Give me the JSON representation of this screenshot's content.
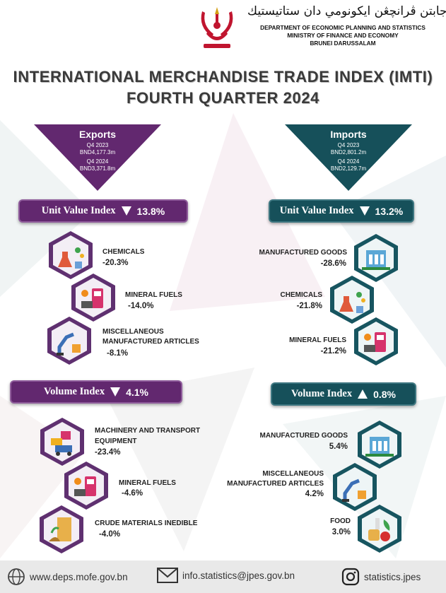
{
  "header": {
    "jawi": "جابتن ڤرانچڠن ايكونومي دان ستاتيستيك",
    "department": "DEPARTMENT OF ECONOMIC PLANNING AND STATISTICS",
    "ministry": "MINISTRY OF FINANCE AND ECONOMY",
    "country": "BRUNEI DARUSSALAM",
    "crest_icon": "brunei-crest-icon"
  },
  "title": {
    "line1": "INTERNATIONAL MERCHANDISE TRADE INDEX (IMTI)",
    "line2": "FOURTH QUARTER 2024"
  },
  "colors": {
    "purple": "#62286f",
    "teal": "#16505a",
    "hex_purple": "#5f3070",
    "hex_teal": "#175560"
  },
  "exports": {
    "heading": "Exports",
    "q_prev_label": "Q4 2023",
    "q_prev_value": "BND4,177.3m",
    "q_curr_label": "Q4 2024",
    "q_curr_value": "BND3,371.8m",
    "unit_value_index": {
      "label": "Unit Value Index",
      "direction": "down",
      "value": "13.8%"
    },
    "unit_value_items": [
      {
        "name": "CHEMICALS",
        "value": "-20.3%",
        "icon": "chemicals-icon"
      },
      {
        "name": "MINERAL FUELS",
        "value": "-14.0%",
        "icon": "fuel-pump-icon"
      },
      {
        "name_line1": "MISCELLANEOUS",
        "name_line2": "MANUFACTURED ARTICLES",
        "value": "-8.1%",
        "icon": "robot-arm-icon"
      }
    ],
    "volume_index": {
      "label": "Volume Index",
      "direction": "down",
      "value": "4.1%"
    },
    "volume_items": [
      {
        "name_line1": "MACHINERY AND TRANSPORT",
        "name_line2": "EQUIPMENT",
        "value": "-23.4%",
        "icon": "machinery-icon"
      },
      {
        "name": "MINERAL FUELS",
        "value": "-4.6%",
        "icon": "fuel-pump-icon"
      },
      {
        "name": "CRUDE MATERIALS INEDIBLE",
        "value": "-4.0%",
        "icon": "crude-materials-icon"
      }
    ]
  },
  "imports": {
    "heading": "Imports",
    "q_prev_label": "Q4 2023",
    "q_prev_value": "BND2,801.2m",
    "q_curr_label": "Q4 2024",
    "q_curr_value": "BND2,129.7m",
    "unit_value_index": {
      "label": "Unit Value Index",
      "direction": "down",
      "value": "13.2%"
    },
    "unit_value_items": [
      {
        "name": "MANUFACTURED GOODS",
        "value": "-28.6%",
        "icon": "factory-icon"
      },
      {
        "name": "CHEMICALS",
        "value": "-21.8%",
        "icon": "chemicals-icon"
      },
      {
        "name": "MINERAL FUELS",
        "value": "-21.2%",
        "icon": "fuel-pump-icon"
      }
    ],
    "volume_index": {
      "label": "Volume Index",
      "direction": "up",
      "value": "0.8%"
    },
    "volume_items": [
      {
        "name": "MANUFACTURED GOODS",
        "value": "5.4%",
        "icon": "factory-icon"
      },
      {
        "name_line1": "MISCELLANEOUS",
        "name_line2": "MANUFACTURED ARTICLES",
        "value": "4.2%",
        "icon": "robot-arm-icon"
      },
      {
        "name": "FOOD",
        "value": "3.0%",
        "icon": "food-icon"
      }
    ]
  },
  "footer": {
    "website": "www.deps.mofe.gov.bn",
    "email": "info.statistics@jpes.gov.bn",
    "instagram": "statistics.jpes"
  }
}
